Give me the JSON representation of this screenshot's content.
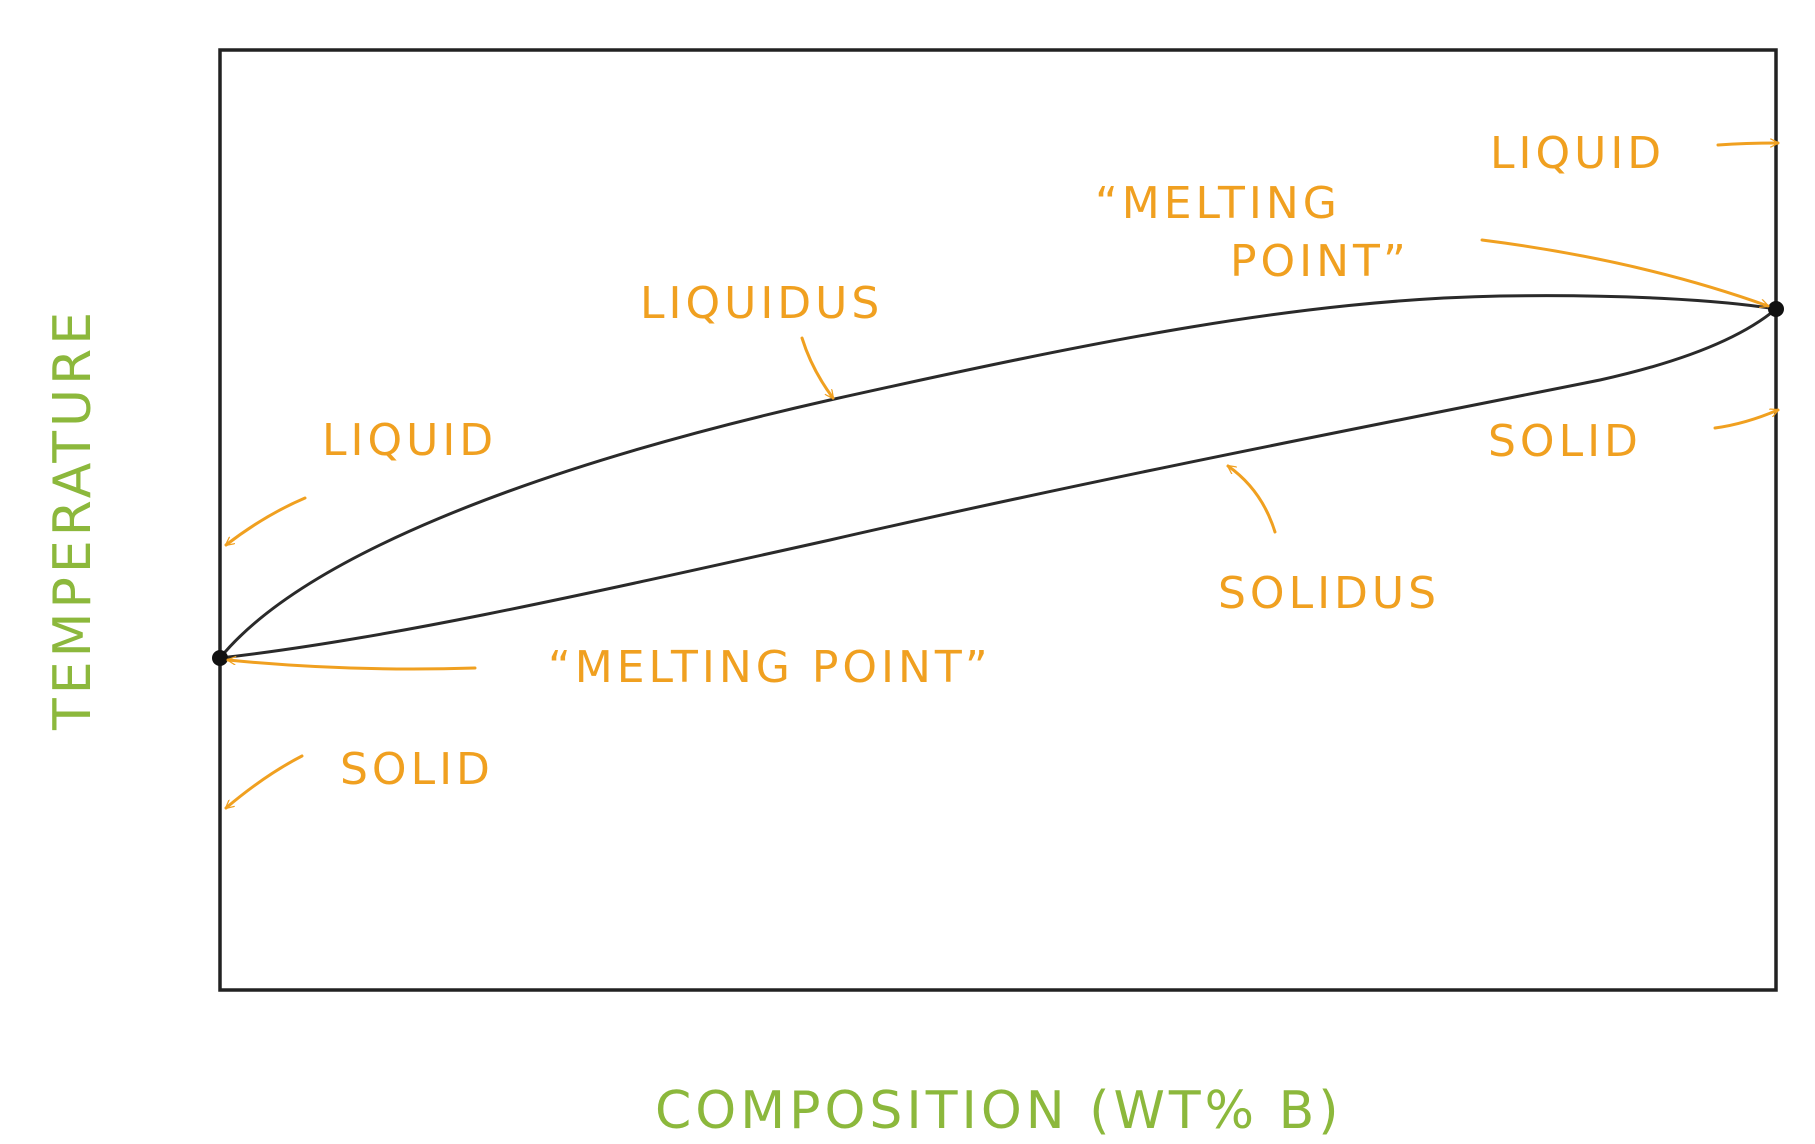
{
  "labels": {
    "liquid_left": "LIQUID",
    "solid_left": "SOLID",
    "liquidus": "LIQUIDUS",
    "solidus": "SOLIDUS",
    "melting_point_left": "“MELTING POINT”",
    "melting_point_right_line1": "“MELTING",
    "melting_point_right_line2": "POINT”",
    "liquid_right": "LIQUID",
    "solid_right": "SOLID"
  },
  "axes": {
    "ylabel": "TEMPERATURE",
    "xlabel": "COMPOSITION (WT% B)"
  },
  "colors": {
    "annotation": "#f0a020",
    "axis_label": "#8cb83c",
    "curve": "#2a2a2a",
    "frame": "#222222"
  }
}
